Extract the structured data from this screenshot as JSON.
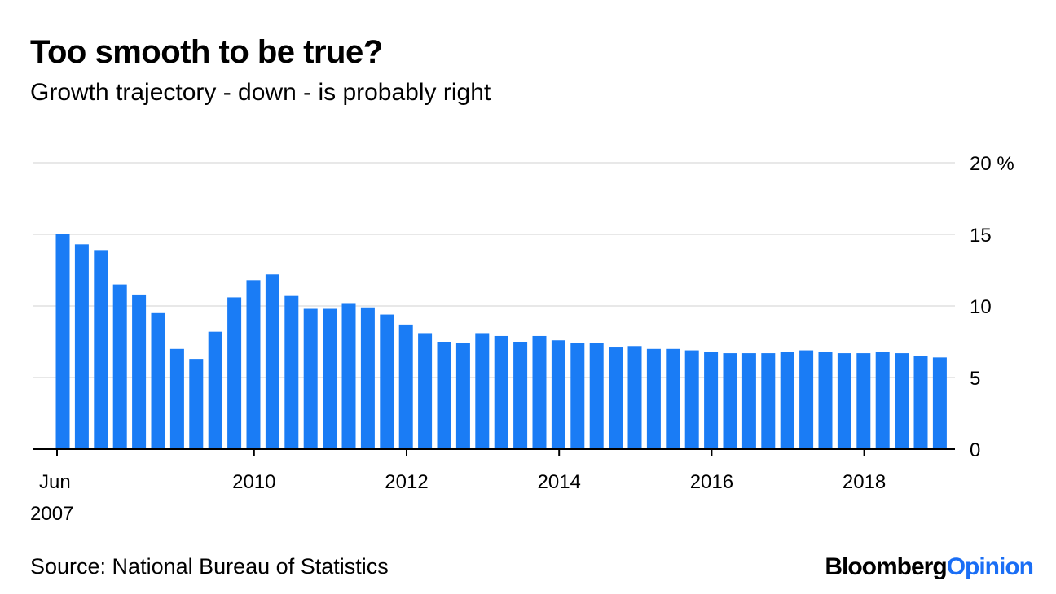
{
  "title": "Too smooth to be true?",
  "subtitle": "Growth trajectory - down - is probably right",
  "source": "Source: National Bureau of Statistics",
  "logo": {
    "brand": "Bloomberg",
    "section": "Opinion"
  },
  "colors": {
    "bar": "#1a7cf5",
    "grid": "#e8e8e8",
    "axis": "#000000"
  },
  "chart_data": {
    "type": "bar",
    "title": "Too smooth to be true?",
    "xlabel": "",
    "ylabel": "%",
    "ylim": [
      0,
      20
    ],
    "grid": true,
    "y_ticks": [
      "0",
      "5",
      "10",
      "15",
      "20 %"
    ],
    "x_ticks": [
      {
        "label": "Jun",
        "label2": "2007",
        "month_index": 0
      },
      {
        "label": "2010",
        "month_index": 31
      },
      {
        "label": "2012",
        "month_index": 55
      },
      {
        "label": "2014",
        "month_index": 79
      },
      {
        "label": "2016",
        "month_index": 103
      },
      {
        "label": "2018",
        "month_index": 127
      }
    ],
    "frequency": "quarterly",
    "start": "2007-Q2",
    "values": [
      15.0,
      14.3,
      13.9,
      11.5,
      10.8,
      9.5,
      7.0,
      6.3,
      8.2,
      10.6,
      11.8,
      12.2,
      10.7,
      9.8,
      9.8,
      10.2,
      9.9,
      9.4,
      8.7,
      8.1,
      7.5,
      7.4,
      8.1,
      7.9,
      7.5,
      7.9,
      7.6,
      7.4,
      7.4,
      7.1,
      7.2,
      7.0,
      7.0,
      6.9,
      6.8,
      6.7,
      6.7,
      6.7,
      6.8,
      6.9,
      6.8,
      6.7,
      6.7,
      6.8,
      6.7,
      6.5,
      6.4
    ]
  }
}
